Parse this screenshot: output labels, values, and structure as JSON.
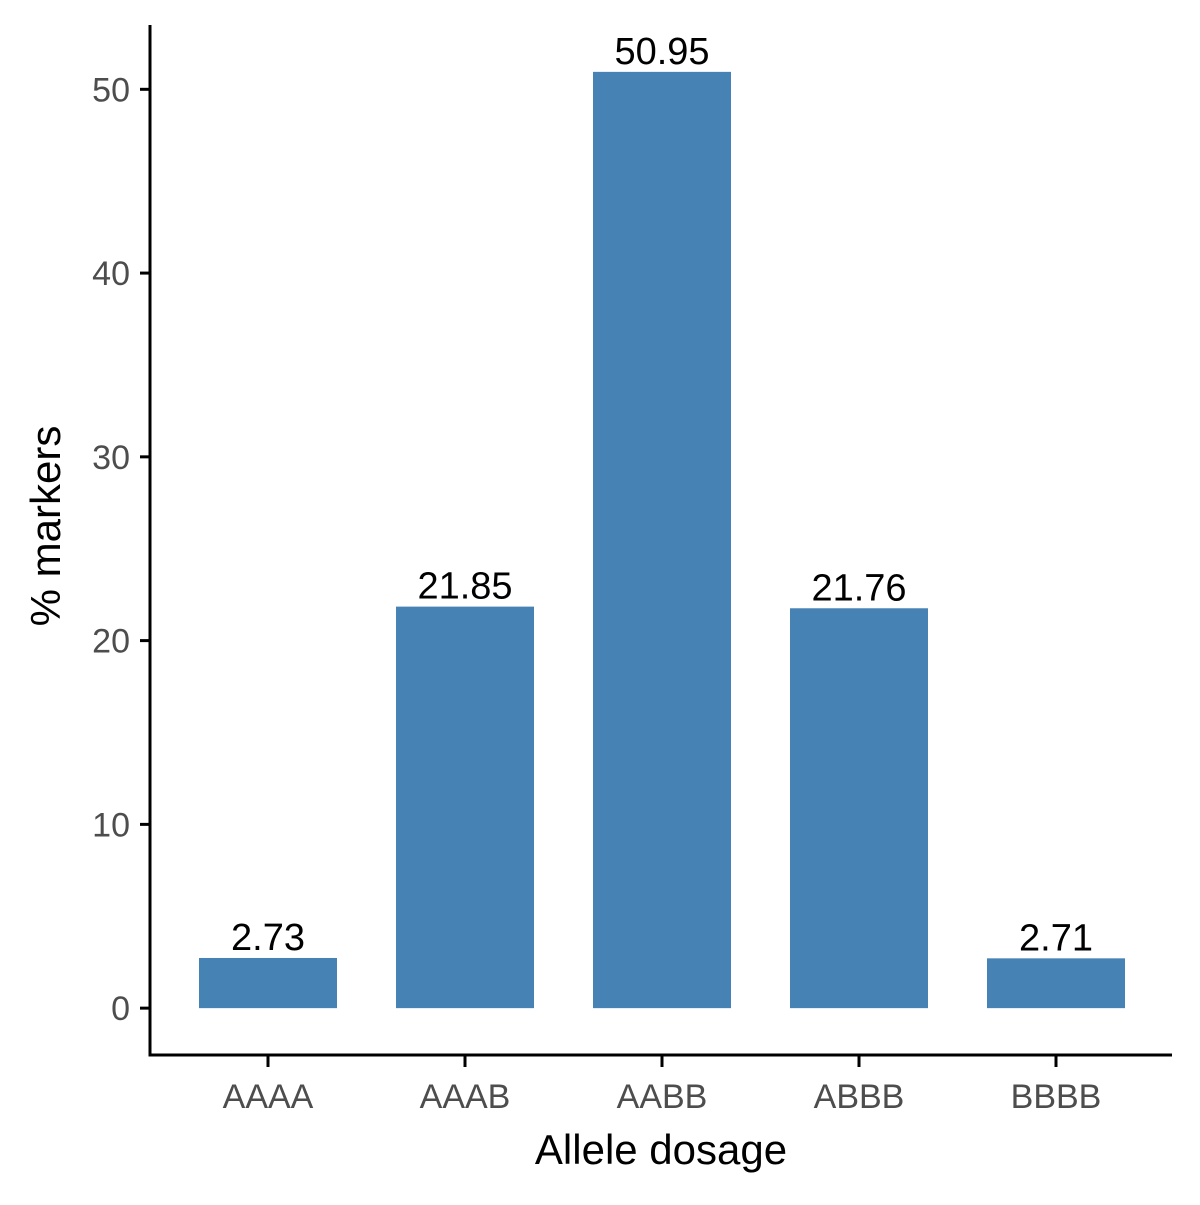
{
  "colors": {
    "bar": "#4682B4",
    "axis": "#000000",
    "tick_text": "#4d4d4d",
    "label_text": "#000000",
    "background": "#ffffff"
  },
  "chart_data": {
    "type": "bar",
    "categories": [
      "AAAA",
      "AAAB",
      "AABB",
      "ABBB",
      "BBBB"
    ],
    "values": [
      2.73,
      21.85,
      50.95,
      21.76,
      2.71
    ],
    "data_labels": [
      "2.73",
      "21.85",
      "50.95",
      "21.76",
      "2.71"
    ],
    "xlabel": "Allele dosage",
    "ylabel": "% markers",
    "ylim": [
      -2.55,
      53.5
    ],
    "yticks": [
      0,
      10,
      20,
      30,
      40,
      50
    ],
    "ytick_labels": [
      "0",
      "10",
      "20",
      "30",
      "40",
      "50"
    ],
    "grid": false,
    "legend": "none"
  }
}
